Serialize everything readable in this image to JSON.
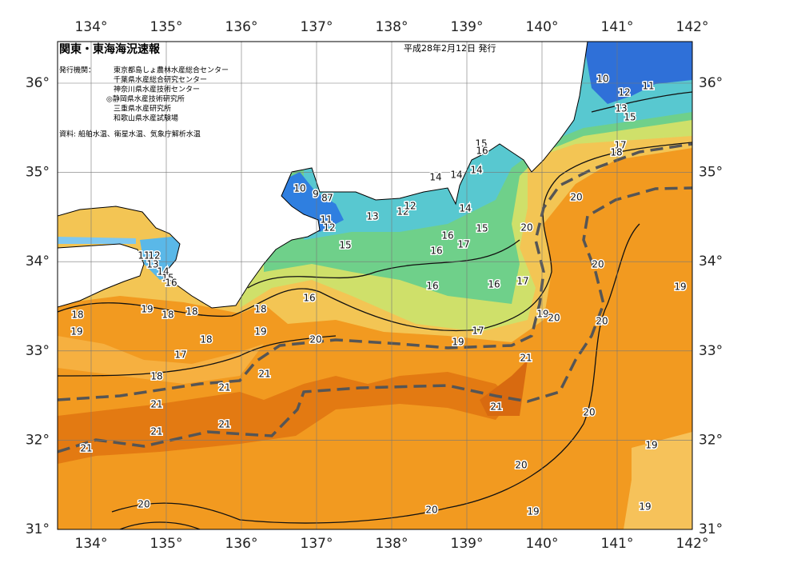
{
  "header": {
    "title": "関東・東海海況速報",
    "date": "平成28年2月12日 発行"
  },
  "issuer": {
    "label": "発行機関：",
    "names": [
      "東京都島しょ農林水産総合センター",
      "千葉県水産総合研究センター",
      "神奈川県水産技術センター",
      "◎静岡県水産技術研究所",
      "三重県水産研究所",
      "和歌山県水産試験場"
    ]
  },
  "source": "資料: 船舶水温、衛星水温、気象庁解析水温",
  "lon_ticks": [
    {
      "value": 134,
      "label": "134°"
    },
    {
      "value": 135,
      "label": "135°"
    },
    {
      "value": 136,
      "label": "136°"
    },
    {
      "value": 137,
      "label": "137°"
    },
    {
      "value": 138,
      "label": "138°"
    },
    {
      "value": 139,
      "label": "139°"
    },
    {
      "value": 140,
      "label": "140°"
    },
    {
      "value": 141,
      "label": "141°"
    },
    {
      "value": 142,
      "label": "142°"
    }
  ],
  "lat_ticks": [
    {
      "value": 36,
      "label": "36°"
    },
    {
      "value": 35,
      "label": "35°"
    },
    {
      "value": 34,
      "label": "34°"
    },
    {
      "value": 33,
      "label": "33°"
    },
    {
      "value": 32,
      "label": "32°"
    },
    {
      "value": 31,
      "label": "31°"
    }
  ],
  "contour_labels": [
    "10",
    "11",
    "12",
    "13",
    "15",
    "17",
    "18",
    "15",
    "16",
    "14",
    "14",
    "14",
    "10",
    "9",
    "8",
    "7",
    "11",
    "12",
    "13",
    "12",
    "12",
    "14",
    "15",
    "16",
    "17",
    "16",
    "15",
    "16",
    "16",
    "17",
    "20",
    "20",
    "20",
    "20",
    "19",
    "19",
    "20",
    "16",
    "18",
    "19",
    "20",
    "19",
    "17",
    "21",
    "21",
    "21",
    "21",
    "21",
    "20",
    "21",
    "21",
    "21",
    "20",
    "19",
    "19",
    "20",
    "20",
    "19",
    "18",
    "19",
    "19",
    "18",
    "18",
    "18",
    "17",
    "18",
    "11",
    "12",
    "13",
    "14",
    "15",
    "16"
  ]
}
